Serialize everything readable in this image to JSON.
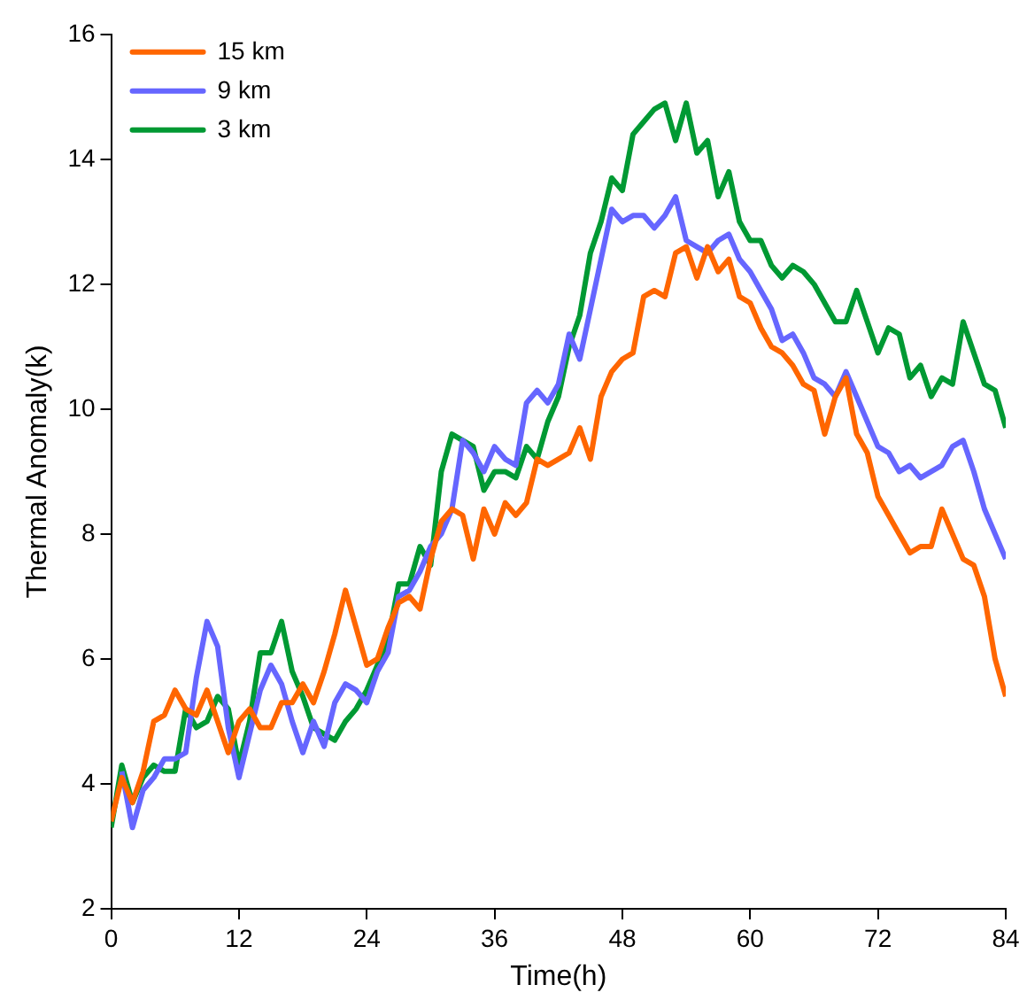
{
  "chart_data": {
    "type": "line",
    "xlabel": "Time(h)",
    "ylabel": "Thermal Anomaly(k)",
    "x": [
      0,
      1,
      2,
      3,
      4,
      5,
      6,
      7,
      8,
      9,
      10,
      11,
      12,
      13,
      14,
      15,
      16,
      17,
      18,
      19,
      20,
      21,
      22,
      23,
      24,
      25,
      26,
      27,
      28,
      29,
      30,
      31,
      32,
      33,
      34,
      35,
      36,
      37,
      38,
      39,
      40,
      41,
      42,
      43,
      44,
      45,
      46,
      47,
      48,
      49,
      50,
      51,
      52,
      53,
      54,
      55,
      56,
      57,
      58,
      59,
      60,
      61,
      62,
      63,
      64,
      65,
      66,
      67,
      68,
      69,
      70,
      71,
      72,
      73,
      74,
      75,
      76,
      77,
      78,
      79,
      80,
      81,
      82,
      83,
      84
    ],
    "series": [
      {
        "name": "15 km",
        "color": "#ff6600",
        "values": [
          3.4,
          4.1,
          3.7,
          4.2,
          5.0,
          5.1,
          5.5,
          5.2,
          5.1,
          5.5,
          5.0,
          4.5,
          5.0,
          5.2,
          4.9,
          4.9,
          5.3,
          5.3,
          5.6,
          5.3,
          5.8,
          6.4,
          7.1,
          6.5,
          5.9,
          6.0,
          6.5,
          6.9,
          7.0,
          6.8,
          7.6,
          8.2,
          8.4,
          8.3,
          7.6,
          8.4,
          8.0,
          8.5,
          8.3,
          8.5,
          9.2,
          9.1,
          9.2,
          9.3,
          9.7,
          9.2,
          10.2,
          10.6,
          10.8,
          10.9,
          11.8,
          11.9,
          11.8,
          12.5,
          12.6,
          12.1,
          12.6,
          12.2,
          12.4,
          11.8,
          11.7,
          11.3,
          11.0,
          10.9,
          10.7,
          10.4,
          10.3,
          9.6,
          10.2,
          10.5,
          9.6,
          9.3,
          8.6,
          8.3,
          8.0,
          7.7,
          7.8,
          7.8,
          8.4,
          8.0,
          7.6,
          7.5,
          7.0,
          6.0,
          5.4
        ]
      },
      {
        "name": "9 km",
        "color": "#6666ff",
        "values": [
          null,
          4.2,
          3.3,
          3.9,
          4.1,
          4.4,
          4.4,
          4.5,
          5.7,
          6.6,
          6.2,
          4.9,
          4.1,
          4.8,
          5.5,
          5.9,
          5.6,
          5.0,
          4.5,
          5.0,
          4.6,
          5.3,
          5.6,
          5.5,
          5.3,
          5.8,
          6.1,
          7.0,
          7.1,
          7.4,
          7.8,
          8.0,
          8.4,
          9.5,
          9.3,
          9.0,
          9.4,
          9.2,
          9.1,
          10.1,
          10.3,
          10.1,
          10.4,
          11.2,
          10.8,
          11.6,
          12.4,
          13.2,
          13.0,
          13.1,
          13.1,
          12.9,
          13.1,
          13.4,
          12.7,
          12.6,
          12.5,
          12.7,
          12.8,
          12.4,
          12.2,
          11.9,
          11.6,
          11.1,
          11.2,
          10.9,
          10.5,
          10.4,
          10.2,
          10.6,
          10.2,
          9.8,
          9.4,
          9.3,
          9.0,
          9.1,
          8.9,
          9.0,
          9.1,
          9.4,
          9.5,
          9.0,
          8.4,
          8.0,
          7.6
        ]
      },
      {
        "name": "3 km",
        "color": "#009933",
        "values": [
          3.3,
          4.3,
          3.7,
          4.1,
          4.3,
          4.2,
          4.2,
          5.2,
          4.9,
          5.0,
          5.4,
          5.2,
          4.3,
          5.0,
          6.1,
          6.1,
          6.6,
          5.8,
          5.4,
          4.9,
          4.8,
          4.7,
          5.0,
          5.2,
          5.5,
          5.9,
          6.3,
          7.2,
          7.2,
          7.8,
          7.5,
          9.0,
          9.6,
          9.5,
          9.4,
          8.7,
          9.0,
          9.0,
          8.9,
          9.4,
          9.2,
          9.8,
          10.2,
          11.0,
          11.5,
          12.5,
          13.0,
          13.7,
          13.5,
          14.4,
          14.6,
          14.8,
          14.9,
          14.3,
          14.9,
          14.1,
          14.3,
          13.4,
          13.8,
          13.0,
          12.7,
          12.7,
          12.3,
          12.1,
          12.3,
          12.2,
          12.0,
          11.7,
          11.4,
          11.4,
          11.9,
          11.4,
          10.9,
          11.3,
          11.2,
          10.5,
          10.7,
          10.2,
          10.5,
          10.4,
          11.4,
          10.9,
          10.4,
          10.3,
          9.7
        ]
      }
    ],
    "xlim": [
      0,
      84
    ],
    "xticks": [
      0,
      12,
      24,
      36,
      48,
      60,
      72,
      84
    ],
    "ylim": [
      2,
      16
    ],
    "yticks": [
      2,
      4,
      6,
      8,
      10,
      12,
      14,
      16
    ],
    "grid": false,
    "legend": "top left",
    "marker": "none",
    "line_style": "solid"
  }
}
